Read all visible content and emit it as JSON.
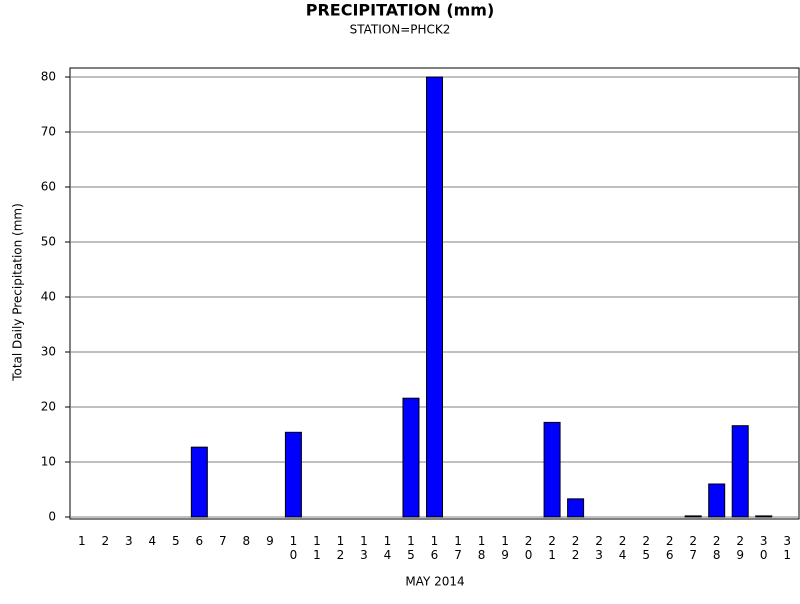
{
  "chart_data": {
    "type": "bar",
    "title": "PRECIPITATION (mm)",
    "subtitle": "STATION=PHCK2",
    "xlabel": "MAY 2014",
    "ylabel": "Total Daily Precipitation (mm)",
    "categories": [
      "1",
      "2",
      "3",
      "4",
      "5",
      "6",
      "7",
      "8",
      "9",
      "10",
      "11",
      "12",
      "13",
      "14",
      "15",
      "16",
      "17",
      "18",
      "19",
      "20",
      "21",
      "22",
      "23",
      "24",
      "25",
      "26",
      "27",
      "28",
      "29",
      "30",
      "31"
    ],
    "values": [
      0,
      0,
      0,
      0,
      0,
      12.7,
      0,
      0,
      0,
      15.4,
      0,
      0,
      0,
      0,
      21.6,
      80,
      0,
      0,
      0,
      0,
      17.2,
      3.3,
      0,
      0,
      0,
      0,
      0.2,
      6.0,
      16.6,
      0.2,
      0
    ],
    "color": "#0000ff",
    "ylim": [
      0,
      80
    ],
    "yticks": [
      0,
      10,
      20,
      30,
      40,
      50,
      60,
      70,
      80
    ],
    "grid": true
  }
}
